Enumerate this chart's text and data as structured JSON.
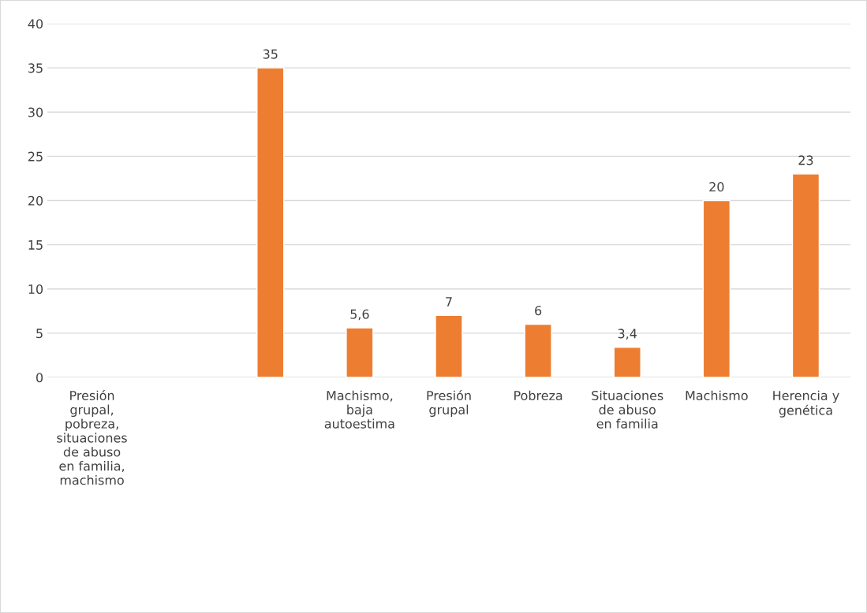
{
  "chart_data": {
    "type": "bar",
    "categories": [
      "Presión\ngrupal,\npobreza,\nsituaciones\nde abuso\nen familia,\nmachismo",
      null,
      null,
      "Machismo,\nbaja\nautoestima",
      "Presión\ngrupal",
      "Pobreza",
      "Situaciones\nde abuso\nen familia",
      "Machismo",
      "Herencia y\ngenética"
    ],
    "values": [
      null,
      null,
      35,
      5.6,
      7,
      6,
      3.4,
      20,
      23
    ],
    "value_labels": [
      null,
      null,
      "35",
      "5,6",
      "7",
      "6",
      "3,4",
      "20",
      "23"
    ],
    "color": "#ed7d31",
    "ylim": [
      0,
      40
    ],
    "yticks": [
      0,
      5,
      10,
      15,
      20,
      25,
      30,
      35,
      40
    ],
    "grid": "y"
  }
}
